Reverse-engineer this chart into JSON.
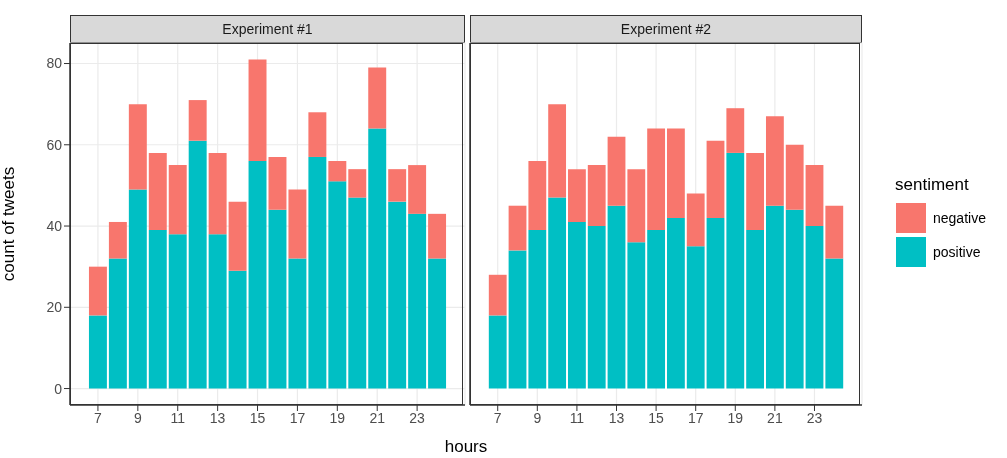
{
  "chart_data": [
    {
      "type": "bar",
      "title": "Experiment #1",
      "xlabel": "hours",
      "ylabel": "count of tweets",
      "stacked": true,
      "grid": true,
      "tick_labels": "xy",
      "x": [
        7,
        8,
        9,
        10,
        11,
        12,
        13,
        14,
        15,
        16,
        17,
        18,
        19,
        20,
        21,
        22,
        23,
        24
      ],
      "xlim": [
        5.6,
        25.4
      ],
      "xticks": [
        7,
        9,
        11,
        13,
        15,
        17,
        19,
        21,
        23
      ],
      "ylim": [
        -4.05,
        85.05
      ],
      "yticks": [
        0,
        20,
        40,
        60,
        80
      ],
      "series": [
        {
          "color": "#00bfc4",
          "values": [
            18,
            32,
            49,
            39,
            38,
            61,
            38,
            29,
            56,
            44,
            32,
            57,
            51,
            47,
            64,
            46,
            43,
            32
          ]
        },
        {
          "color": "#f8766d",
          "values": [
            12,
            9,
            21,
            19,
            17,
            10,
            20,
            17,
            25,
            13,
            17,
            11,
            5,
            7,
            15,
            8,
            12,
            11
          ]
        }
      ]
    },
    {
      "type": "bar",
      "title": "Experiment #2",
      "legend_title": "sentiment",
      "legend": "right",
      "stacked": true,
      "grid": true,
      "tick_labels": "x",
      "x": [
        7,
        8,
        9,
        10,
        11,
        12,
        13,
        14,
        15,
        16,
        17,
        18,
        19,
        20,
        21,
        22,
        23,
        24
      ],
      "xlim": [
        5.6,
        25.4
      ],
      "xticks": [
        7,
        9,
        11,
        13,
        15,
        17,
        19,
        21,
        23
      ],
      "ylim": [
        -4.05,
        85.05
      ],
      "yticks": [
        0,
        20,
        40,
        60,
        80
      ],
      "series": [
        {
          "name": "positive",
          "color": "#00bfc4",
          "values": [
            18,
            34,
            39,
            47,
            41,
            40,
            45,
            36,
            39,
            42,
            35,
            42,
            58,
            39,
            45,
            44,
            40,
            32
          ]
        },
        {
          "name": "negative",
          "color": "#f8766d",
          "values": [
            10,
            11,
            17,
            23,
            13,
            15,
            17,
            18,
            25,
            22,
            13,
            19,
            11,
            19,
            22,
            16,
            15,
            13
          ]
        }
      ]
    }
  ]
}
